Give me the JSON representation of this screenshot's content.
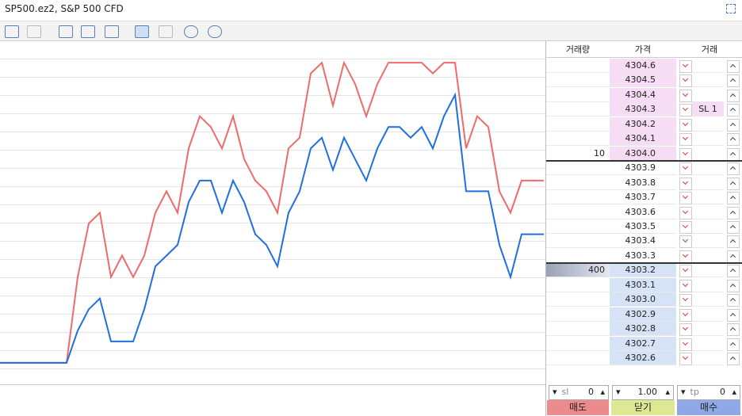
{
  "window": {
    "title": "SP500.ez2, S&P 500 CFD"
  },
  "chart_data": {
    "type": "line",
    "ylim": [
      4301.8,
      4305.0
    ],
    "series": [
      {
        "color": "#f06a6a",
        "values": [
          4302.0,
          4302.0,
          4302.0,
          4302.0,
          4302.0,
          4302.0,
          4302.0,
          4302.8,
          4303.3,
          4303.4,
          4302.8,
          4303.0,
          4302.8,
          4303.0,
          4303.4,
          4303.6,
          4303.4,
          4304.0,
          4304.3,
          4304.2,
          4304.0,
          4304.3,
          4303.9,
          4303.7,
          4303.6,
          4303.4,
          4304.0,
          4304.1,
          4304.7,
          4304.8,
          4304.4,
          4304.8,
          4304.6,
          4304.3,
          4304.6,
          4304.8,
          4304.8,
          4304.8,
          4304.8,
          4304.7,
          4304.8,
          4304.8,
          4304.0,
          4304.3,
          4304.2,
          4303.6,
          4303.4,
          4303.7,
          4303.7,
          4303.7
        ]
      },
      {
        "color": "#1f6fe0",
        "values": [
          4302.0,
          4302.0,
          4302.0,
          4302.0,
          4302.0,
          4302.0,
          4302.0,
          4302.3,
          4302.5,
          4302.6,
          4302.2,
          4302.2,
          4302.2,
          4302.5,
          4302.9,
          4303.0,
          4303.1,
          4303.5,
          4303.7,
          4303.7,
          4303.4,
          4303.7,
          4303.5,
          4303.2,
          4303.1,
          4302.9,
          4303.4,
          4303.6,
          4304.0,
          4304.1,
          4303.8,
          4304.1,
          4303.9,
          4303.7,
          4304.0,
          4304.2,
          4304.2,
          4304.1,
          4304.2,
          4304.0,
          4304.3,
          4304.5,
          4303.6,
          4303.6,
          4303.6,
          4303.1,
          4302.8,
          4303.2,
          4303.2,
          4303.2
        ]
      }
    ]
  },
  "table": {
    "headers": [
      "거래량",
      "가격",
      "거래"
    ],
    "rows": [
      {
        "price": "4304.6"
      },
      {
        "price": "4304.5"
      },
      {
        "price": "4304.4"
      },
      {
        "price": "4304.3",
        "trade": "SL 1"
      },
      {
        "price": "4304.2"
      },
      {
        "price": "4304.1"
      },
      {
        "price": "4304.0",
        "volume": "10"
      },
      {
        "price": "4303.9"
      },
      {
        "price": "4303.8"
      },
      {
        "price": "4303.7"
      },
      {
        "price": "4303.6"
      },
      {
        "price": "4303.5"
      },
      {
        "price": "4303.4"
      },
      {
        "price": "4303.3"
      },
      {
        "price": "4303.2",
        "volume": "400"
      },
      {
        "price": "4303.1"
      },
      {
        "price": "4303.0"
      },
      {
        "price": "4302.9"
      },
      {
        "price": "4302.8"
      },
      {
        "price": "4302.7"
      },
      {
        "price": "4302.6"
      }
    ]
  },
  "controls": {
    "sl_label": "sl",
    "sl_value": "0",
    "lot": "1.00",
    "tp_label": "tp",
    "tp_value": "0"
  },
  "buttons": {
    "sell": "매도",
    "close": "닫기",
    "buy": "매수"
  }
}
